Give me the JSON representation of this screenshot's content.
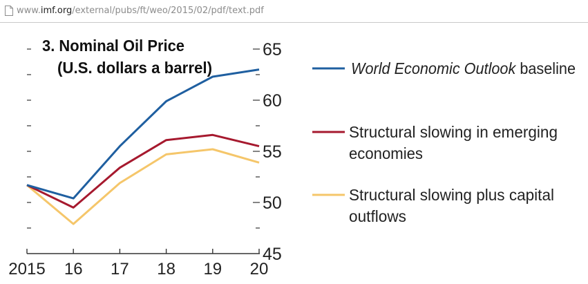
{
  "address_bar": {
    "url_prefix": "www.",
    "url_domain": "imf.org",
    "url_path": "/external/pubs/ft/weo/2015/02/pdf/text.pdf",
    "icon": "page-icon"
  },
  "chart_data": {
    "type": "line",
    "title": "3. Nominal Oil Price",
    "subtitle": "(U.S. dollars a barrel)",
    "categories": [
      "2015",
      "16",
      "17",
      "18",
      "19",
      "20"
    ],
    "x_tick_labels": [
      "2015",
      "16",
      "17",
      "18",
      "19",
      "20"
    ],
    "ylim": [
      45,
      65
    ],
    "y_ticks": [
      45,
      50,
      55,
      60,
      65
    ],
    "y_tick_labels": [
      "45",
      "50",
      "55",
      "60",
      "65"
    ],
    "y_axis_position": "right",
    "grid": false,
    "legend_position": "right",
    "series": [
      {
        "name": "World Economic Outlook baseline",
        "name_italic": "World Economic Outlook",
        "name_rest": " baseline",
        "color": "#1f5fa0",
        "values": [
          51.7,
          50.4,
          55.5,
          59.9,
          62.3,
          63.0
        ]
      },
      {
        "name": "Structural slowing in emerging economies",
        "name_lines": [
          "Structural slowing in emerging",
          "economies"
        ],
        "color": "#a6192e",
        "values": [
          51.7,
          49.5,
          53.4,
          56.1,
          56.6,
          55.5
        ]
      },
      {
        "name": "Structural slowing plus capital outflows",
        "name_lines": [
          "Structural slowing plus capital",
          "outflows"
        ],
        "color": "#f5c66a",
        "values": [
          51.7,
          47.9,
          51.9,
          54.7,
          55.2,
          53.9
        ]
      }
    ]
  }
}
